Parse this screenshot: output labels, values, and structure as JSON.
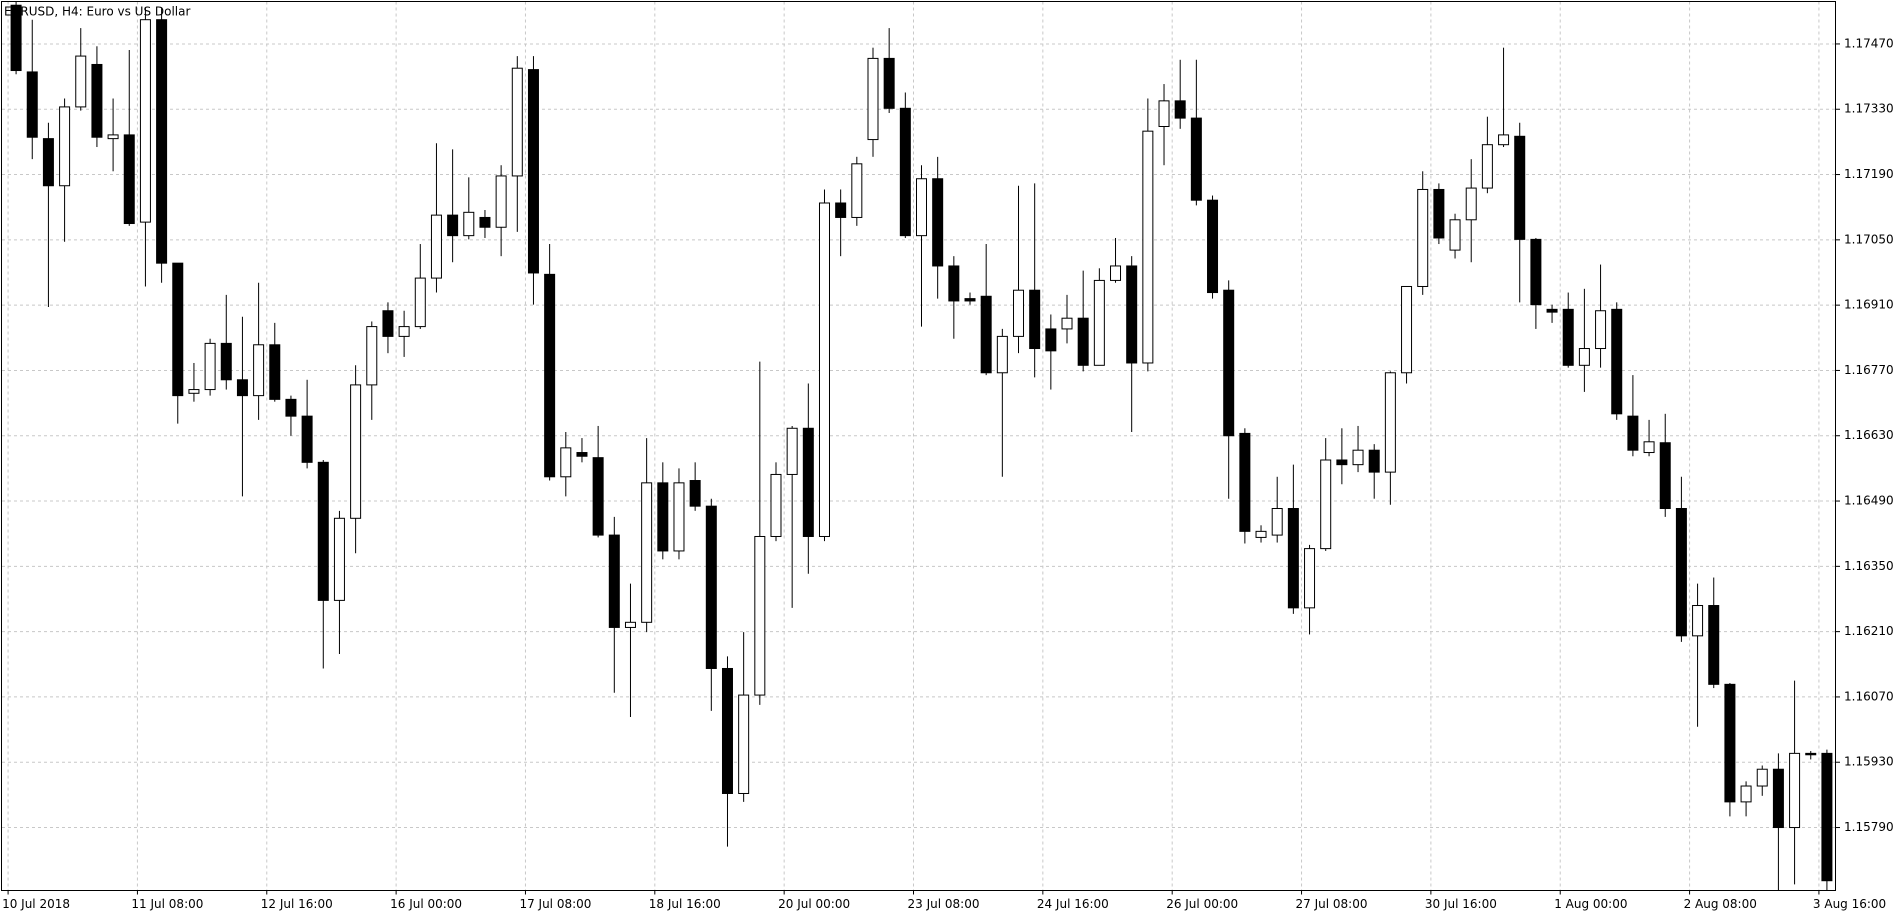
{
  "chart_data": {
    "type": "candlestick",
    "title": "EURUSD, H4:  Euro vs US Dollar",
    "categories": [
      "10 Jul 2018",
      null,
      null,
      null,
      null,
      null,
      null,
      null,
      "11 Jul 08:00",
      null,
      null,
      null,
      null,
      null,
      null,
      null,
      "12 Jul 16:00",
      null,
      null,
      null,
      null,
      null,
      null,
      null,
      "16 Jul 00:00",
      null,
      null,
      null,
      null,
      null,
      null,
      null,
      "17 Jul 08:00",
      null,
      null,
      null,
      null,
      null,
      null,
      null,
      "18 Jul 16:00",
      null,
      null,
      null,
      null,
      null,
      null,
      null,
      "20 Jul 00:00",
      null,
      null,
      null,
      null,
      null,
      null,
      null,
      "23 Jul 08:00",
      null,
      null,
      null,
      null,
      null,
      null,
      null,
      "24 Jul 16:00",
      null,
      null,
      null,
      null,
      null,
      null,
      null,
      "26 Jul 00:00",
      null,
      null,
      null,
      null,
      null,
      null,
      null,
      "27 Jul 08:00",
      null,
      null,
      null,
      null,
      null,
      null,
      null,
      "30 Jul 16:00",
      null,
      null,
      null,
      null,
      null,
      null,
      null,
      "1 Aug 00:00",
      null,
      null,
      null,
      null,
      null,
      null,
      null,
      "2 Aug 08:00",
      null,
      null,
      null,
      null,
      null,
      null,
      null,
      "3 Aug 16:00"
    ],
    "open": [
      1.17553,
      1.1741,
      1.17267,
      1.17166,
      1.17335,
      1.17426,
      1.17267,
      1.17275,
      1.17088,
      1.17522,
      1.17,
      1.16721,
      1.16729,
      1.16828,
      1.1675,
      1.16716,
      1.16825,
      1.16708,
      1.16672,
      1.16573,
      1.16277,
      1.16453,
      1.16739,
      1.16898,
      1.16843,
      1.16864,
      1.16968,
      1.17103,
      1.17059,
      1.17098,
      1.17077,
      1.17187,
      1.17415,
      1.16976,
      1.16542,
      1.16594,
      1.16583,
      1.16417,
      1.16219,
      1.1623,
      1.16529,
      1.16383,
      1.16534,
      1.16479,
      1.16131,
      1.15863,
      1.16074,
      1.16414,
      1.16547,
      1.16646,
      1.16414,
      1.17129,
      1.17098,
      1.17265,
      1.17439,
      1.17332,
      1.17059,
      1.17181,
      1.16994,
      1.16924,
      1.16929,
      1.16765,
      1.16843,
      1.16942,
      1.16859,
      1.16859,
      1.16882,
      1.16781,
      1.16963,
      1.16994,
      1.16786,
      1.17293,
      1.17348,
      1.17311,
      1.17135,
      1.16942,
      1.16635,
      1.16412,
      1.16417,
      1.16474,
      1.16261,
      1.16388,
      1.16578,
      1.16568,
      1.16599,
      1.16552,
      1.16765,
      1.1695,
      1.17158,
      1.17028,
      1.17093,
      1.17161,
      1.17254,
      1.17272,
      1.17051,
      1.16901,
      1.16901,
      1.16781,
      1.16817,
      1.16901,
      1.16672,
      1.16594,
      1.16615,
      1.16474,
      1.16201,
      1.16266,
      1.16097,
      1.15845,
      1.15879,
      1.15915,
      1.1579,
      1.15949,
      1.15949
    ],
    "high": [
      1.17561,
      1.17522,
      1.17301,
      1.17353,
      1.17504,
      1.17465,
      1.17353,
      1.17457,
      1.17548,
      1.17548,
      1.17,
      1.16786,
      1.16838,
      1.16932,
      1.16885,
      1.16958,
      1.16872,
      1.16716,
      1.1675,
      1.16578,
      1.16469,
      1.16781,
      1.16875,
      1.16916,
      1.16898,
      1.17041,
      1.17257,
      1.17244,
      1.17184,
      1.17114,
      1.1721,
      1.17444,
      1.17444,
      1.17041,
      1.16638,
      1.16625,
      1.16651,
      1.16456,
      1.16313,
      1.16625,
      1.16573,
      1.1656,
      1.16573,
      1.16495,
      1.16157,
      1.16209,
      1.16789,
      1.16573,
      1.16651,
      1.16742,
      1.17158,
      1.17158,
      1.17228,
      1.17462,
      1.17504,
      1.17366,
      1.1721,
      1.17228,
      1.17015,
      1.16937,
      1.17041,
      1.16859,
      1.17166,
      1.17171,
      1.1689,
      1.16932,
      1.16984,
      1.16989,
      1.17054,
      1.17015,
      1.17353,
      1.17384,
      1.17436,
      1.17436,
      1.17145,
      1.16963,
      1.16646,
      1.16438,
      1.16542,
      1.16568,
      1.16396,
      1.16625,
      1.16646,
      1.16651,
      1.16612,
      1.16768,
      1.1695,
      1.17197,
      1.17171,
      1.17106,
      1.17223,
      1.17314,
      1.17462,
      1.17301,
      1.17054,
      1.16911,
      1.16937,
      1.16945,
      1.16997,
      1.16916,
      1.1676,
      1.16664,
      1.16677,
      1.16542,
      1.16313,
      1.16326,
      1.161,
      1.15889,
      1.15923,
      1.15949,
      1.16105,
      1.15954,
      1.15957
    ],
    "low": [
      1.17405,
      1.17223,
      1.16906,
      1.17046,
      1.17327,
      1.17249,
      1.17197,
      1.1708,
      1.1695,
      1.16958,
      1.16656,
      1.16703,
      1.16716,
      1.16729,
      1.165,
      1.16664,
      1.16703,
      1.1663,
      1.1656,
      1.16131,
      1.16162,
      1.16378,
      1.16664,
      1.16807,
      1.16799,
      1.16859,
      1.16937,
      1.17002,
      1.17051,
      1.17054,
      1.17015,
      1.17067,
      1.16911,
      1.16534,
      1.165,
      1.16573,
      1.16412,
      1.16079,
      1.16027,
      1.16209,
      1.16365,
      1.16365,
      1.16469,
      1.1604,
      1.15749,
      1.15845,
      1.16053,
      1.16404,
      1.16261,
      1.16334,
      1.16404,
      1.17015,
      1.1708,
      1.17228,
      1.17322,
      1.17054,
      1.16864,
      1.16924,
      1.16838,
      1.16911,
      1.1676,
      1.16542,
      1.16807,
      1.16755,
      1.16729,
      1.16828,
      1.16768,
      1.16781,
      1.16958,
      1.16638,
      1.16768,
      1.1721,
      1.17288,
      1.17124,
      1.16924,
      1.16495,
      1.16399,
      1.16401,
      1.16401,
      1.16248,
      1.16204,
      1.16383,
      1.16526,
      1.16552,
      1.16495,
      1.16482,
      1.16742,
      1.16932,
      1.17041,
      1.1701,
      1.17002,
      1.1715,
      1.17249,
      1.16916,
      1.16859,
      1.16872,
      1.16776,
      1.16724,
      1.16776,
      1.16664,
      1.16586,
      1.16586,
      1.16456,
      1.16188,
      1.16006,
      1.16089,
      1.15814,
      1.15814,
      1.15858,
      1.15656,
      1.15668,
      1.15936,
      1.15655
    ],
    "close": [
      1.17413,
      1.1727,
      1.17166,
      1.17335,
      1.17444,
      1.1727,
      1.17275,
      1.17085,
      1.17522,
      1.17,
      1.16716,
      1.16729,
      1.16828,
      1.1675,
      1.16716,
      1.16825,
      1.16708,
      1.16672,
      1.16573,
      1.16277,
      1.16453,
      1.16739,
      1.16864,
      1.16843,
      1.16864,
      1.16968,
      1.17103,
      1.17059,
      1.17109,
      1.17077,
      1.17187,
      1.17418,
      1.16979,
      1.16542,
      1.16604,
      1.16586,
      1.16417,
      1.16219,
      1.1623,
      1.16529,
      1.16383,
      1.16529,
      1.16479,
      1.16131,
      1.15863,
      1.16074,
      1.16414,
      1.16547,
      1.16646,
      1.16414,
      1.17129,
      1.17098,
      1.17213,
      1.17439,
      1.17332,
      1.17059,
      1.17181,
      1.16994,
      1.16919,
      1.16919,
      1.16765,
      1.16843,
      1.16942,
      1.16817,
      1.16812,
      1.16882,
      1.16781,
      1.16963,
      1.16994,
      1.16786,
      1.17283,
      1.17348,
      1.17311,
      1.17135,
      1.16937,
      1.1663,
      1.16425,
      1.16425,
      1.16474,
      1.16261,
      1.16388,
      1.16578,
      1.16568,
      1.16599,
      1.16552,
      1.16765,
      1.1695,
      1.17158,
      1.17054,
      1.17093,
      1.17161,
      1.17254,
      1.17275,
      1.17051,
      1.16911,
      1.16895,
      1.16781,
      1.16817,
      1.16898,
      1.16677,
      1.16599,
      1.16617,
      1.16474,
      1.16201,
      1.16266,
      1.16097,
      1.15845,
      1.15879,
      1.15915,
      1.1579,
      1.15949,
      1.15946,
      1.15676
    ],
    "up_color": "#ffffff",
    "down_color": "#000000",
    "wick_color": "#000000",
    "ylim": [
      1.15655,
      1.17561
    ],
    "yticks": [
      {
        "value": 1.1747,
        "label": "1.17470"
      },
      {
        "value": 1.1733,
        "label": "1.17330"
      },
      {
        "value": 1.1719,
        "label": "1.17190"
      },
      {
        "value": 1.1705,
        "label": "1.17050"
      },
      {
        "value": 1.1691,
        "label": "1.16910"
      },
      {
        "value": 1.1677,
        "label": "1.16770"
      },
      {
        "value": 1.1663,
        "label": "1.16630"
      },
      {
        "value": 1.1649,
        "label": "1.16490"
      },
      {
        "value": 1.1635,
        "label": "1.16350"
      },
      {
        "value": 1.1621,
        "label": "1.16210"
      },
      {
        "value": 1.1607,
        "label": "1.16070"
      },
      {
        "value": 1.1593,
        "label": "1.15930"
      },
      {
        "value": 1.1579,
        "label": "1.15790"
      }
    ],
    "grid": true
  }
}
